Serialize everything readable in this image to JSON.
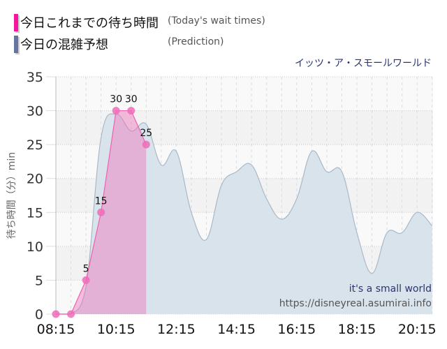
{
  "legend": [
    {
      "label_jp": "今日これまでの待ち時間",
      "label_en": "(Today's wait times)",
      "color": "#f5179b"
    },
    {
      "label_jp": "今日の混雑予想",
      "label_en": "(Prediction)",
      "color": "#6575a0"
    }
  ],
  "attraction_name": "イッツ・ア・スモールワールド",
  "watermark": {
    "name": "it's a small world",
    "url": "https://disneyreal.asumirai.info"
  },
  "chart_data": {
    "type": "area",
    "title": "イッツ・ア・スモールワールド",
    "xlabel": "",
    "ylabel": "待ち時間（分）min",
    "ylim": [
      0,
      35
    ],
    "yticks": [
      0,
      5,
      10,
      15,
      20,
      25,
      30,
      35
    ],
    "xticks": [
      "08:15",
      "10:15",
      "12:15",
      "14:15",
      "16:15",
      "18:15",
      "20:15"
    ],
    "grid": true,
    "legend_position": "top-left",
    "series": [
      {
        "name": "今日これまでの待ち時間 (Today's wait times)",
        "color": "#f06bb8",
        "x": [
          "08:15",
          "08:45",
          "09:15",
          "09:45",
          "10:15",
          "10:45",
          "11:15"
        ],
        "values": [
          0,
          0,
          5,
          15,
          30,
          30,
          25
        ],
        "data_labels": [
          "",
          "",
          "5",
          "15",
          "30",
          "30",
          "25"
        ]
      },
      {
        "name": "今日の混雑予想 (Prediction)",
        "color": "#aebfcf",
        "x": [
          "08:15",
          "08:45",
          "09:15",
          "09:45",
          "10:15",
          "10:45",
          "11:15",
          "11:45",
          "12:15",
          "12:45",
          "13:15",
          "13:45",
          "14:15",
          "14:45",
          "15:15",
          "15:45",
          "16:15",
          "16:45",
          "17:15",
          "17:45",
          "18:15",
          "18:45",
          "19:15",
          "19:45",
          "20:15",
          "20:45"
        ],
        "values": [
          0,
          0,
          4,
          26,
          29.5,
          27,
          28,
          22,
          24,
          15,
          11,
          19,
          21,
          22,
          17,
          14,
          17,
          24,
          21,
          21,
          12,
          6,
          12,
          12,
          15,
          13
        ]
      }
    ]
  }
}
